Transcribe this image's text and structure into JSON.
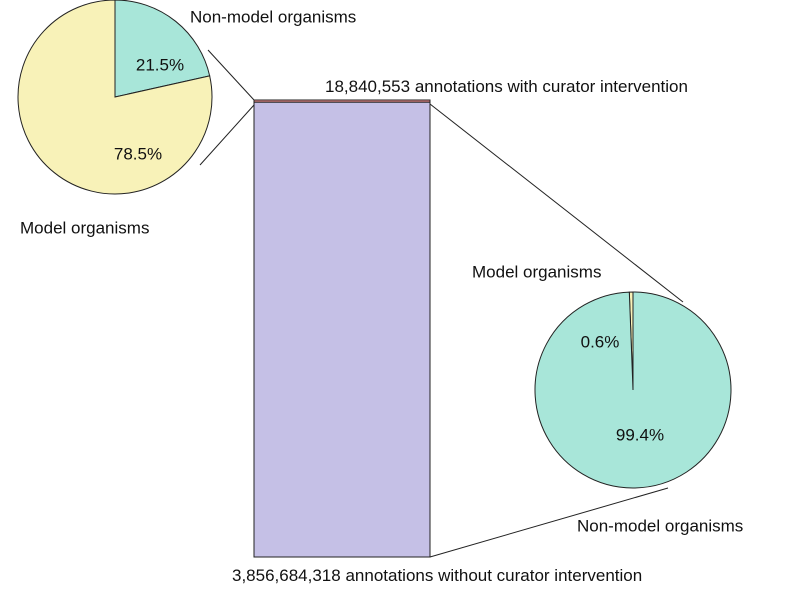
{
  "chart_data": [
    {
      "type": "stacked-bar",
      "segments": [
        {
          "name": "annotations with curator intervention",
          "value": 18840553,
          "value_label": "18,840,553",
          "color": "#f08f8f"
        },
        {
          "name": "annotations without curator intervention",
          "value": 3856684318,
          "value_label": "3,856,684,318",
          "color": "#c5c0e6"
        }
      ]
    },
    {
      "type": "pie",
      "categories": [
        "Non-model organisms",
        "Model organisms"
      ],
      "values": [
        21.5,
        78.5
      ],
      "value_labels": [
        "21.5%",
        "78.5%"
      ],
      "colors": [
        "#a8e6d9",
        "#f8f2b8"
      ]
    },
    {
      "type": "pie",
      "categories": [
        "Model organisms",
        "Non-model organisms"
      ],
      "values": [
        0.6,
        99.4
      ],
      "value_labels": [
        "0.6%",
        "99.4%"
      ],
      "colors": [
        "#f8f2b8",
        "#a8e6d9"
      ]
    }
  ]
}
